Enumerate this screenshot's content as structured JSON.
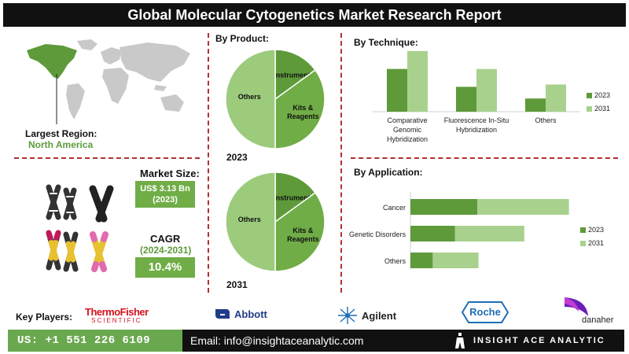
{
  "header": {
    "title": "Global Molecular Cytogenetics Market Research Report"
  },
  "region": {
    "label": "Largest Region:",
    "value": "North America"
  },
  "market": {
    "size_label": "Market Size:",
    "size_value": "US$ 3.13 Bn",
    "size_year": "(2023)",
    "cagr_label": "CAGR",
    "cagr_period": "(2024-2031)",
    "cagr_value": "10.4%"
  },
  "colors": {
    "dark_green": "#5e9a3a",
    "light_green": "#a9d18e",
    "mid_green": "#70ad47",
    "accent_red": "#b03030"
  },
  "chart_data": [
    {
      "type": "pie",
      "title": "By Product:",
      "year_label": "2023",
      "slices": [
        {
          "label": "Instruments",
          "value": 15
        },
        {
          "label": "Kits & Reagents",
          "value": 35
        },
        {
          "label": "Others",
          "value": 50
        }
      ]
    },
    {
      "type": "pie",
      "year_label": "2031",
      "slices": [
        {
          "label": "Instruments",
          "value": 15
        },
        {
          "label": "Kits & Reagents",
          "value": 35
        },
        {
          "label": "Others",
          "value": 50
        }
      ]
    },
    {
      "type": "bar",
      "title": "By  Technique:",
      "categories": [
        "Comparative Genomic Hybridization",
        "Fluorescence In-Situ Hybridization",
        "Others"
      ],
      "category_lines": [
        [
          "Comparative",
          "Genomic",
          "Hybridization"
        ],
        [
          "Fluorescence In-Situ",
          "Hybridization"
        ],
        [
          "Others"
        ]
      ],
      "series": [
        {
          "name": "2023",
          "values": [
            55,
            32,
            17
          ]
        },
        {
          "name": "2031",
          "values": [
            78,
            55,
            35
          ]
        }
      ],
      "legend": "right",
      "grid": false
    },
    {
      "type": "bar",
      "orientation": "horizontal",
      "stacked": true,
      "title": "By Application:",
      "categories": [
        "Cancer",
        "Genetic Disorders",
        "Others"
      ],
      "series": [
        {
          "name": "2023",
          "values": [
            60,
            40,
            20
          ]
        },
        {
          "name": "2031",
          "values": [
            82,
            62,
            41
          ]
        }
      ],
      "legend": "right",
      "grid": false
    }
  ],
  "key_players": {
    "label": "Key Players:",
    "thermo": {
      "line1": "ThermoFisher",
      "line2": "SCIENTIFIC"
    },
    "abbott": "Abbott",
    "agilent": "Agilent",
    "roche": "Roche",
    "danaher": "danaher"
  },
  "contact": {
    "phone": "US: +1 551 226 6109",
    "email": "Email: info@insightaceanalytic.com",
    "brand": "INSIGHT ACE ANALYTIC"
  }
}
